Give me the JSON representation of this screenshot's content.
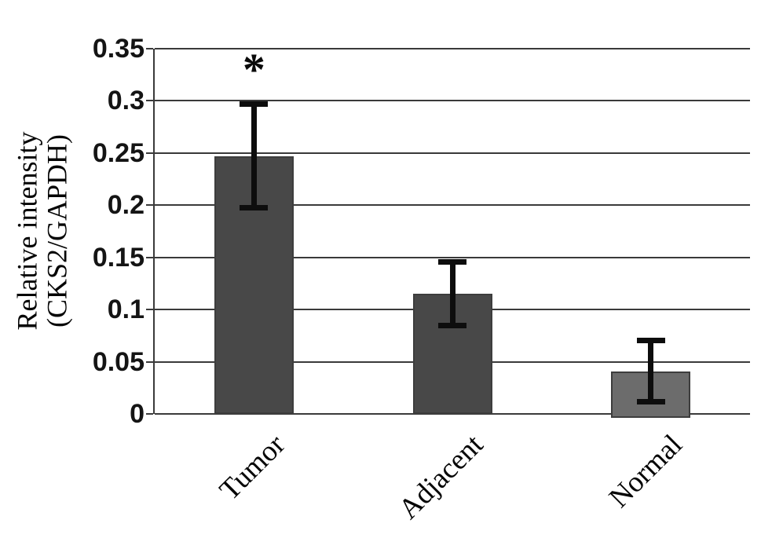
{
  "figure": {
    "background_color": "#ffffff"
  },
  "chart_data": {
    "type": "bar",
    "title": "",
    "categories": [
      "Tumor",
      "Adjacent",
      "Normal"
    ],
    "values": [
      0.247,
      0.115,
      0.041
    ],
    "error_bars": [
      0.05,
      0.031,
      0.03
    ],
    "bar_colors": [
      "#484848",
      "#484848",
      "#6c6c6c"
    ],
    "bar_border_color": "#3d3d3d",
    "ylabel_line1": "Relative intensity",
    "ylabel_line2": "(CKS2/GAPDH)",
    "xlabel": "",
    "ylim": [
      0,
      0.35
    ],
    "yticks": [
      {
        "value": 0,
        "label": "0"
      },
      {
        "value": 0.05,
        "label": "0.05"
      },
      {
        "value": 0.1,
        "label": "0.1"
      },
      {
        "value": 0.15,
        "label": "0.15"
      },
      {
        "value": 0.2,
        "label": "0.2"
      },
      {
        "value": 0.25,
        "label": "0.25"
      },
      {
        "value": 0.3,
        "label": "0.3"
      },
      {
        "value": 0.35,
        "label": "0.35"
      }
    ],
    "grid": true,
    "gridline_color": "#3a3a3a",
    "axis_color": "#3a3a3a",
    "error_bar_color": "#0d0d0d",
    "tick_label_color": "#141414",
    "legend": null,
    "annotations": [
      {
        "text": "*",
        "category_index": 0
      }
    ]
  }
}
